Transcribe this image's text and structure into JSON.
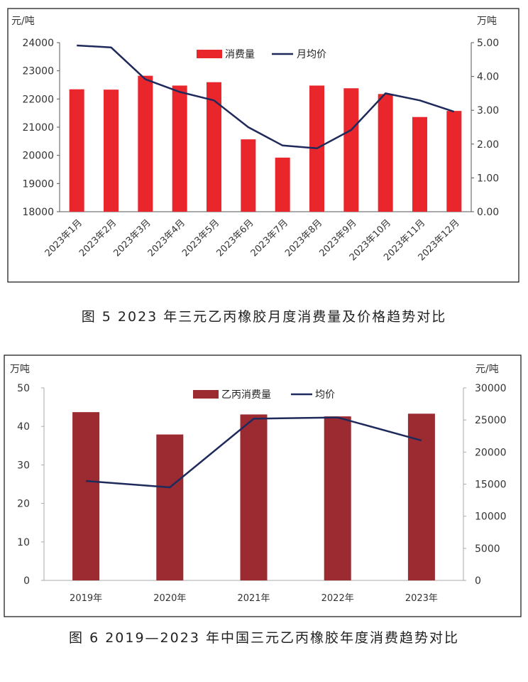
{
  "captions": {
    "fig5": "图 5  2023 年三元乙丙橡胶月度消费量及价格趋势对比",
    "fig6": "图 6  2019—2023 年中国三元乙丙橡胶年度消费趋势对比"
  },
  "chart_data": [
    {
      "type": "bar",
      "categories": [
        "2023年1月",
        "2023年2月",
        "2023年3月",
        "2023年4月",
        "2023年5月",
        "2023年6月",
        "2023年7月",
        "2023年8月",
        "2023年9月",
        "2023年10月",
        "2023年11月",
        "2023年12月"
      ],
      "y_left_unit": "元/吨",
      "y_right_unit": "万吨",
      "y_left_ticks": [
        "24000",
        "23000",
        "22000",
        "21000",
        "20000",
        "19000",
        "18000"
      ],
      "y_right_ticks": [
        "5.00",
        "4.00",
        "3.00",
        "2.00",
        "1.00",
        "0.00"
      ],
      "ylim_left": [
        18000,
        24000
      ],
      "ylim_right": [
        0,
        5
      ],
      "bar_axis": "right",
      "line_axis": "left",
      "bar_color": "#e8262b",
      "line_color": "#1f2a5c",
      "series": [
        {
          "name": "消费量",
          "kind": "bar",
          "values": [
            3.62,
            3.61,
            4.02,
            3.73,
            3.83,
            2.14,
            1.6,
            3.73,
            3.65,
            3.48,
            2.8,
            2.98
          ]
        },
        {
          "name": "月均价",
          "kind": "line",
          "values": [
            23900,
            23830,
            22700,
            22250,
            21950,
            21000,
            20350,
            20250,
            20900,
            22200,
            21950,
            21550
          ]
        }
      ],
      "legend": "top-center"
    },
    {
      "type": "bar",
      "categories": [
        "2019年",
        "2020年",
        "2021年",
        "2022年",
        "2023年"
      ],
      "y_left_unit": "万吨",
      "y_right_unit": "元/吨",
      "y_left_ticks": [
        "50",
        "40",
        "30",
        "20",
        "10",
        "0"
      ],
      "y_right_ticks": [
        "30000",
        "25000",
        "20000",
        "15000",
        "10000",
        "5000",
        "0"
      ],
      "ylim_left": [
        0,
        50
      ],
      "ylim_right": [
        0,
        30000
      ],
      "bar_axis": "left",
      "line_axis": "right",
      "bar_color": "#9b2b30",
      "line_color": "#1f2a5c",
      "series": [
        {
          "name": "乙丙消费量",
          "kind": "bar",
          "values": [
            43.7,
            37.9,
            43.1,
            42.6,
            43.3
          ]
        },
        {
          "name": "均价",
          "kind": "line",
          "values": [
            15500,
            14500,
            25200,
            25400,
            21800
          ]
        }
      ],
      "legend": "top-center"
    }
  ]
}
